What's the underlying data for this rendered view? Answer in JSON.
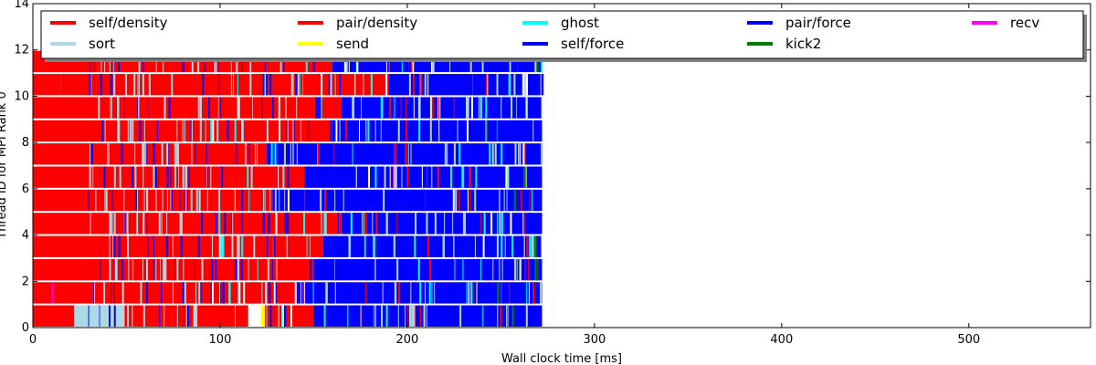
{
  "chart_data": {
    "type": "gantt",
    "xlabel": "Wall clock time [ms]",
    "ylabel": "Thread ID for MPI Rank 0",
    "xlim": [
      0,
      565
    ],
    "ylim": [
      0,
      14
    ],
    "xticks": [
      0,
      100,
      200,
      300,
      400,
      500
    ],
    "yticks": [
      0,
      2,
      4,
      6,
      8,
      10,
      12,
      14
    ],
    "grid": false,
    "legend_position": "top, 5 columns",
    "legend": [
      {
        "name": "self/density",
        "color": "#ff0000"
      },
      {
        "name": "sort",
        "color": "#add8e6"
      },
      {
        "name": "pair/density",
        "color": "#ff0000"
      },
      {
        "name": "send",
        "color": "#ffff00"
      },
      {
        "name": "ghost",
        "color": "#00ffff"
      },
      {
        "name": "self/force",
        "color": "#0000ff"
      },
      {
        "name": "pair/force",
        "color": "#0000ff"
      },
      {
        "name": "kick2",
        "color": "#008000"
      },
      {
        "name": "recv",
        "color": "#ff00ff"
      }
    ],
    "thread_count": 12,
    "end_time_ms": 272,
    "rows": [
      {
        "thread": 0,
        "segments": [
          {
            "task": "self/density",
            "start": 0,
            "end": 22
          },
          {
            "task": "sort",
            "start": 22,
            "end": 49
          },
          {
            "task": "self/density",
            "start": 49,
            "end": 115
          },
          {
            "task": "send",
            "start": 122,
            "end": 124
          },
          {
            "task": "pair/density",
            "start": 124,
            "end": 150
          },
          {
            "task": "self/force",
            "start": 150,
            "end": 272
          },
          {
            "task": "kick2",
            "start": 256,
            "end": 257
          }
        ]
      },
      {
        "thread": 1,
        "segments": [
          {
            "task": "self/density",
            "start": 0,
            "end": 40
          },
          {
            "task": "recv",
            "start": 10,
            "end": 11
          },
          {
            "task": "recv",
            "start": 60,
            "end": 61
          },
          {
            "task": "pair/density",
            "start": 40,
            "end": 140
          },
          {
            "task": "recv",
            "start": 166,
            "end": 167
          },
          {
            "task": "self/force",
            "start": 140,
            "end": 272
          },
          {
            "task": "kick2",
            "start": 248,
            "end": 249
          }
        ]
      },
      {
        "thread": 2,
        "segments": [
          {
            "task": "self/density",
            "start": 0,
            "end": 50
          },
          {
            "task": "pair/density",
            "start": 50,
            "end": 150
          },
          {
            "task": "self/force",
            "start": 150,
            "end": 272
          },
          {
            "task": "kick2",
            "start": 268,
            "end": 270
          }
        ]
      },
      {
        "thread": 3,
        "segments": [
          {
            "task": "self/density",
            "start": 0,
            "end": 43
          },
          {
            "task": "pair/density",
            "start": 43,
            "end": 155
          },
          {
            "task": "self/force",
            "start": 155,
            "end": 272
          },
          {
            "task": "kick2",
            "start": 266,
            "end": 269
          }
        ]
      },
      {
        "thread": 4,
        "segments": [
          {
            "task": "self/density",
            "start": 0,
            "end": 50
          },
          {
            "task": "pair/density",
            "start": 50,
            "end": 165
          },
          {
            "task": "self/force",
            "start": 165,
            "end": 272
          }
        ]
      },
      {
        "thread": 5,
        "segments": [
          {
            "task": "self/density",
            "start": 0,
            "end": 28
          },
          {
            "task": "pair/density",
            "start": 28,
            "end": 128
          },
          {
            "task": "self/force",
            "start": 128,
            "end": 272
          },
          {
            "task": "kick2",
            "start": 257,
            "end": 258
          }
        ]
      },
      {
        "thread": 6,
        "segments": [
          {
            "task": "self/density",
            "start": 0,
            "end": 50
          },
          {
            "task": "pair/density",
            "start": 50,
            "end": 145
          },
          {
            "task": "self/force",
            "start": 145,
            "end": 272
          },
          {
            "task": "kick2",
            "start": 262,
            "end": 264
          }
        ]
      },
      {
        "thread": 7,
        "segments": [
          {
            "task": "self/density",
            "start": 0,
            "end": 30
          },
          {
            "task": "pair/density",
            "start": 30,
            "end": 125
          },
          {
            "task": "self/force",
            "start": 125,
            "end": 272
          }
        ]
      },
      {
        "thread": 8,
        "segments": [
          {
            "task": "self/density",
            "start": 0,
            "end": 37
          },
          {
            "task": "pair/density",
            "start": 37,
            "end": 160
          },
          {
            "task": "self/force",
            "start": 160,
            "end": 272
          },
          {
            "task": "kick2",
            "start": 242,
            "end": 243
          }
        ]
      },
      {
        "thread": 9,
        "segments": [
          {
            "task": "self/density",
            "start": 0,
            "end": 48
          },
          {
            "task": "pair/density",
            "start": 48,
            "end": 165
          },
          {
            "task": "self/force",
            "start": 165,
            "end": 272
          }
        ]
      },
      {
        "thread": 10,
        "segments": [
          {
            "task": "self/density",
            "start": 0,
            "end": 15
          },
          {
            "task": "pair/density",
            "start": 15,
            "end": 190
          },
          {
            "task": "self/force",
            "start": 190,
            "end": 272
          }
        ]
      },
      {
        "thread": 11,
        "segments": [
          {
            "task": "self/density",
            "start": 0,
            "end": 35
          },
          {
            "task": "pair/density",
            "start": 35,
            "end": 160
          },
          {
            "task": "self/force",
            "start": 160,
            "end": 272
          },
          {
            "task": "kick2",
            "start": 268,
            "end": 270
          }
        ]
      }
    ]
  }
}
